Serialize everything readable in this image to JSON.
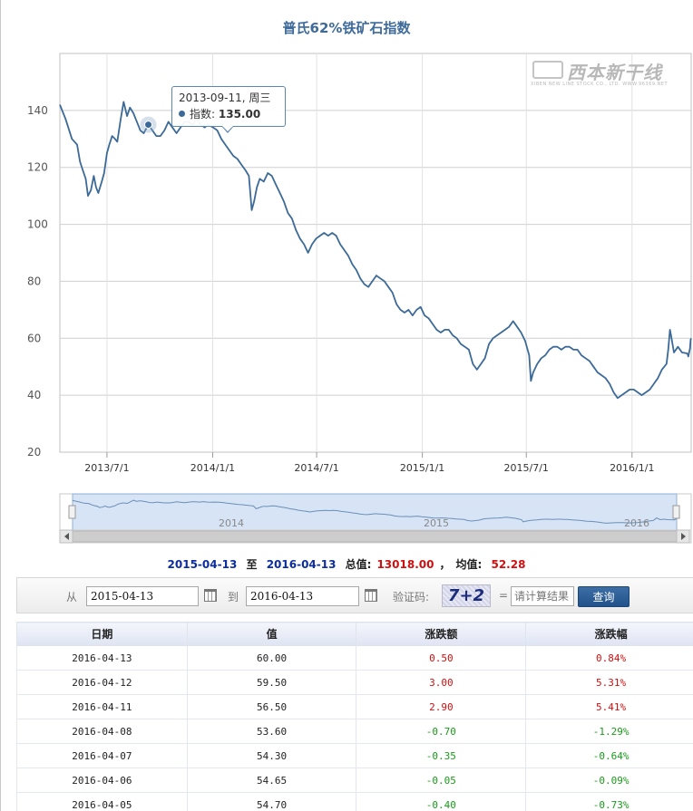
{
  "chart_data": {
    "type": "line",
    "title": "普氏62%铁矿石指数",
    "xlabel": "",
    "ylabel": "",
    "ylim": [
      20,
      160
    ],
    "yticks": [
      20,
      40,
      60,
      80,
      100,
      120,
      140
    ],
    "grid": true,
    "x_ticks": [
      {
        "date": "2013-07-01",
        "label": "2013/7/1"
      },
      {
        "date": "2014-01-01",
        "label": "2014/1/1"
      },
      {
        "date": "2014-07-01",
        "label": "2014/7/1"
      },
      {
        "date": "2015-01-01",
        "label": "2015/1/1"
      },
      {
        "date": "2015-07-01",
        "label": "2015/7/1"
      },
      {
        "date": "2016-01-01",
        "label": "2016/1/1"
      }
    ],
    "x_range": [
      "2013-04-10",
      "2016-04-13"
    ],
    "series": [
      {
        "color": "#3c6a98",
        "points": [
          [
            "2013-04-10",
            142
          ],
          [
            "2013-04-20",
            137
          ],
          [
            "2013-05-01",
            130
          ],
          [
            "2013-05-10",
            128
          ],
          [
            "2013-05-15",
            122
          ],
          [
            "2013-05-20",
            119
          ],
          [
            "2013-05-25",
            116
          ],
          [
            "2013-05-29",
            110
          ],
          [
            "2013-06-03",
            112
          ],
          [
            "2013-06-08",
            117
          ],
          [
            "2013-06-12",
            113
          ],
          [
            "2013-06-16",
            111
          ],
          [
            "2013-06-22",
            115
          ],
          [
            "2013-06-26",
            118
          ],
          [
            "2013-07-01",
            125
          ],
          [
            "2013-07-05",
            128
          ],
          [
            "2013-07-10",
            131
          ],
          [
            "2013-07-15",
            130
          ],
          [
            "2013-07-19",
            129
          ],
          [
            "2013-07-25",
            137
          ],
          [
            "2013-07-30",
            143
          ],
          [
            "2013-08-05",
            138
          ],
          [
            "2013-08-10",
            141
          ],
          [
            "2013-08-16",
            139
          ],
          [
            "2013-08-22",
            136
          ],
          [
            "2013-08-28",
            133
          ],
          [
            "2013-09-03",
            132
          ],
          [
            "2013-09-11",
            135
          ],
          [
            "2013-09-18",
            133
          ],
          [
            "2013-09-25",
            131
          ],
          [
            "2013-10-02",
            131
          ],
          [
            "2013-10-09",
            133
          ],
          [
            "2013-10-16",
            136
          ],
          [
            "2013-10-23",
            134
          ],
          [
            "2013-10-30",
            132
          ],
          [
            "2013-11-06",
            134
          ],
          [
            "2013-11-13",
            136
          ],
          [
            "2013-11-20",
            136
          ],
          [
            "2013-11-27",
            135
          ],
          [
            "2013-12-04",
            137
          ],
          [
            "2013-12-11",
            135
          ],
          [
            "2013-12-18",
            134
          ],
          [
            "2013-12-24",
            135
          ],
          [
            "2014-01-02",
            134
          ],
          [
            "2014-01-09",
            133
          ],
          [
            "2014-01-16",
            130
          ],
          [
            "2014-01-23",
            128
          ],
          [
            "2014-01-30",
            126
          ],
          [
            "2014-02-06",
            124
          ],
          [
            "2014-02-13",
            123
          ],
          [
            "2014-02-20",
            121
          ],
          [
            "2014-02-27",
            119
          ],
          [
            "2014-03-05",
            117
          ],
          [
            "2014-03-10",
            105
          ],
          [
            "2014-03-14",
            108
          ],
          [
            "2014-03-19",
            113
          ],
          [
            "2014-03-24",
            116
          ],
          [
            "2014-03-31",
            115
          ],
          [
            "2014-04-07",
            118
          ],
          [
            "2014-04-14",
            117
          ],
          [
            "2014-04-21",
            114
          ],
          [
            "2014-04-28",
            111
          ],
          [
            "2014-05-05",
            108
          ],
          [
            "2014-05-12",
            104
          ],
          [
            "2014-05-19",
            102
          ],
          [
            "2014-05-26",
            98
          ],
          [
            "2014-06-02",
            95
          ],
          [
            "2014-06-09",
            93
          ],
          [
            "2014-06-16",
            90
          ],
          [
            "2014-06-23",
            93
          ],
          [
            "2014-06-30",
            95
          ],
          [
            "2014-07-07",
            96
          ],
          [
            "2014-07-14",
            97
          ],
          [
            "2014-07-21",
            96
          ],
          [
            "2014-07-28",
            97
          ],
          [
            "2014-08-04",
            96
          ],
          [
            "2014-08-11",
            93
          ],
          [
            "2014-08-18",
            91
          ],
          [
            "2014-08-25",
            89
          ],
          [
            "2014-09-01",
            86
          ],
          [
            "2014-09-08",
            84
          ],
          [
            "2014-09-15",
            81
          ],
          [
            "2014-09-22",
            79
          ],
          [
            "2014-09-29",
            78
          ],
          [
            "2014-10-06",
            80
          ],
          [
            "2014-10-13",
            82
          ],
          [
            "2014-10-20",
            81
          ],
          [
            "2014-10-27",
            80
          ],
          [
            "2014-11-03",
            78
          ],
          [
            "2014-11-10",
            76
          ],
          [
            "2014-11-17",
            72
          ],
          [
            "2014-11-24",
            70
          ],
          [
            "2014-12-01",
            69
          ],
          [
            "2014-12-08",
            70
          ],
          [
            "2014-12-15",
            68
          ],
          [
            "2014-12-22",
            70
          ],
          [
            "2014-12-29",
            71
          ],
          [
            "2015-01-05",
            68
          ],
          [
            "2015-01-12",
            67
          ],
          [
            "2015-01-19",
            65
          ],
          [
            "2015-01-26",
            63
          ],
          [
            "2015-02-02",
            62
          ],
          [
            "2015-02-09",
            63
          ],
          [
            "2015-02-16",
            63
          ],
          [
            "2015-02-23",
            61
          ],
          [
            "2015-03-02",
            60
          ],
          [
            "2015-03-09",
            58
          ],
          [
            "2015-03-16",
            57
          ],
          [
            "2015-03-23",
            56
          ],
          [
            "2015-03-30",
            51
          ],
          [
            "2015-04-06",
            49
          ],
          [
            "2015-04-13",
            51
          ],
          [
            "2015-04-20",
            53
          ],
          [
            "2015-04-27",
            58
          ],
          [
            "2015-05-04",
            60
          ],
          [
            "2015-05-11",
            61
          ],
          [
            "2015-05-18",
            62
          ],
          [
            "2015-05-25",
            63
          ],
          [
            "2015-06-01",
            64
          ],
          [
            "2015-06-08",
            66
          ],
          [
            "2015-06-15",
            64
          ],
          [
            "2015-06-22",
            62
          ],
          [
            "2015-06-29",
            59
          ],
          [
            "2015-07-06",
            54
          ],
          [
            "2015-07-09",
            45
          ],
          [
            "2015-07-13",
            48
          ],
          [
            "2015-07-20",
            51
          ],
          [
            "2015-07-27",
            53
          ],
          [
            "2015-08-03",
            54
          ],
          [
            "2015-08-10",
            56
          ],
          [
            "2015-08-17",
            57
          ],
          [
            "2015-08-24",
            57
          ],
          [
            "2015-08-31",
            56
          ],
          [
            "2015-09-07",
            57
          ],
          [
            "2015-09-14",
            57
          ],
          [
            "2015-09-21",
            56
          ],
          [
            "2015-09-28",
            56
          ],
          [
            "2015-10-05",
            54
          ],
          [
            "2015-10-12",
            53
          ],
          [
            "2015-10-19",
            52
          ],
          [
            "2015-10-26",
            50
          ],
          [
            "2015-11-02",
            48
          ],
          [
            "2015-11-09",
            47
          ],
          [
            "2015-11-16",
            46
          ],
          [
            "2015-11-23",
            44
          ],
          [
            "2015-11-30",
            41
          ],
          [
            "2015-12-07",
            39
          ],
          [
            "2015-12-14",
            40
          ],
          [
            "2015-12-21",
            41
          ],
          [
            "2015-12-28",
            42
          ],
          [
            "2016-01-04",
            42
          ],
          [
            "2016-01-11",
            41
          ],
          [
            "2016-01-18",
            40
          ],
          [
            "2016-01-25",
            41
          ],
          [
            "2016-02-01",
            42
          ],
          [
            "2016-02-08",
            44
          ],
          [
            "2016-02-15",
            46
          ],
          [
            "2016-02-22",
            49
          ],
          [
            "2016-03-01",
            51
          ],
          [
            "2016-03-04",
            56
          ],
          [
            "2016-03-07",
            63
          ],
          [
            "2016-03-09",
            61
          ],
          [
            "2016-03-14",
            55
          ],
          [
            "2016-03-21",
            57
          ],
          [
            "2016-03-28",
            55
          ],
          [
            "2016-04-05",
            54.7
          ],
          [
            "2016-04-06",
            54.65
          ],
          [
            "2016-04-07",
            54.3
          ],
          [
            "2016-04-08",
            53.6
          ],
          [
            "2016-04-11",
            56.5
          ],
          [
            "2016-04-12",
            59.5
          ],
          [
            "2016-04-13",
            60
          ]
        ]
      }
    ],
    "tooltip": {
      "date": "2013-09-11, 周三",
      "label": "指数:",
      "value": "135.00"
    },
    "navigator": {
      "labels": [
        "2014",
        "2015",
        "2016"
      ]
    }
  },
  "logo": {
    "cn": "西本新干线",
    "en": "XIBEN NEW LINE STOCK CO., LTD.  WWW.96369.NET"
  },
  "summary": {
    "start": "2015-04-13",
    "to": "至",
    "end": "2016-04-13",
    "total_label": "总值:",
    "total": "13018.00",
    "separator": "，",
    "avg_label": "均值:",
    "avg": "52.28"
  },
  "query": {
    "from_label": "从",
    "from_value": "2015-04-13",
    "to_label": "到",
    "to_value": "2016-04-13",
    "captcha_label": "验证码:",
    "captcha_text": "7+2",
    "equals": "=",
    "captcha_placeholder": "请计算结果",
    "button": "查询"
  },
  "table": {
    "headers": [
      "日期",
      "值",
      "涨跌额",
      "涨跌幅"
    ],
    "rows": [
      {
        "date": "2016-04-13",
        "value": "60.00",
        "change": "0.50",
        "pct": "0.84%",
        "dir": "up"
      },
      {
        "date": "2016-04-12",
        "value": "59.50",
        "change": "3.00",
        "pct": "5.31%",
        "dir": "up"
      },
      {
        "date": "2016-04-11",
        "value": "56.50",
        "change": "2.90",
        "pct": "5.41%",
        "dir": "up"
      },
      {
        "date": "2016-04-08",
        "value": "53.60",
        "change": "-0.70",
        "pct": "-1.29%",
        "dir": "down"
      },
      {
        "date": "2016-04-07",
        "value": "54.30",
        "change": "-0.35",
        "pct": "-0.64%",
        "dir": "down"
      },
      {
        "date": "2016-04-06",
        "value": "54.65",
        "change": "-0.05",
        "pct": "-0.09%",
        "dir": "down"
      },
      {
        "date": "2016-04-05",
        "value": "54.70",
        "change": "-0.40",
        "pct": "-0.73%",
        "dir": "down"
      }
    ]
  }
}
